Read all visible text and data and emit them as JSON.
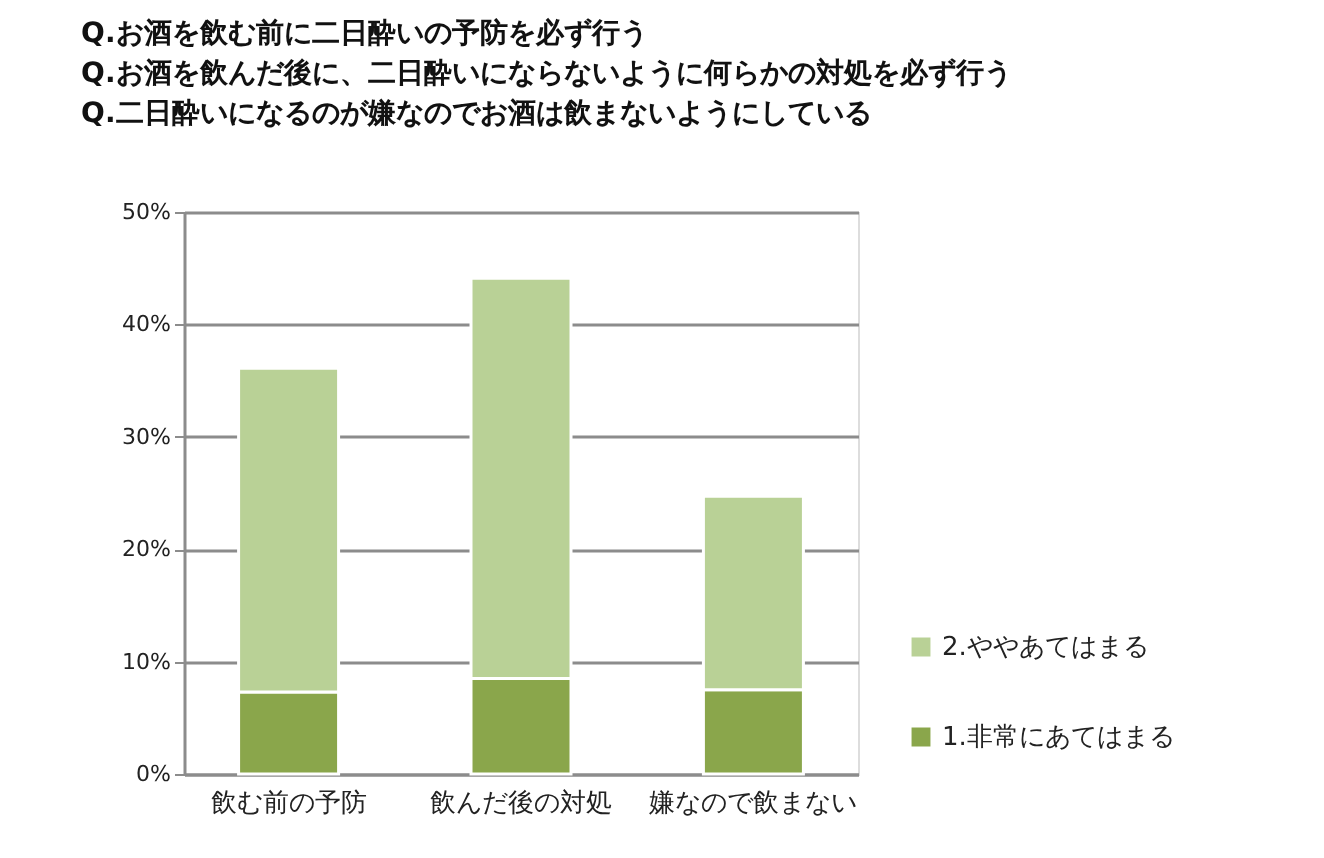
{
  "chart_data": {
    "type": "bar",
    "title": "Q.お酒を飲む前に二日酔いの予防を必ず行う\nQ.お酒を飲んだ後に、二日酔いにならないように何らかの対処を必ず行う\nQ.二日酔いになるのが嫌なのでお酒は飲まないようにしている",
    "categories": [
      "飲む前の予防",
      "飲んだ後の対処",
      "嫌なので飲まない"
    ],
    "stacked": true,
    "series": [
      {
        "name": "1.非常にあてはまる",
        "color": "#8aa64b",
        "values": [
          7.3,
          8.5,
          7.5
        ]
      },
      {
        "name": "2.ややあてはまる",
        "color": "#b9d196",
        "values": [
          28.8,
          35.6,
          17.2
        ]
      }
    ],
    "ylim": [
      0,
      50
    ],
    "yticks": [
      {
        "value": 0,
        "label": "0%"
      },
      {
        "value": 10,
        "label": "10%"
      },
      {
        "value": 20,
        "label": "20%"
      },
      {
        "value": 30,
        "label": "30%"
      },
      {
        "value": 40,
        "label": "40%"
      },
      {
        "value": 50,
        "label": "50%"
      }
    ],
    "grid": "y",
    "legend": "bottom right"
  }
}
